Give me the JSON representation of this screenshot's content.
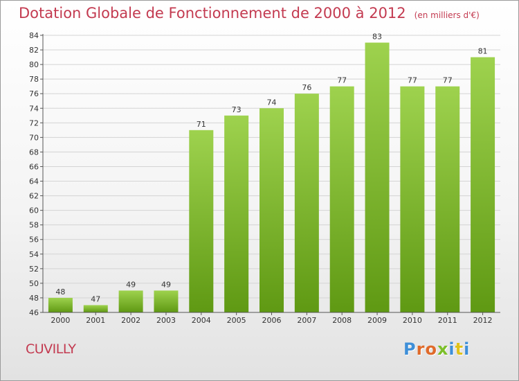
{
  "header": {
    "title": "Dotation Globale de Fonctionnement de 2000 à 2012",
    "subtitle": "(en milliers d'€)"
  },
  "footer": {
    "commune": "CUVILLY",
    "logo_text": "Proxiti"
  },
  "colors": {
    "title": "#c33a50",
    "bar_top": "#9ed24e",
    "bar_bottom": "#5f9913",
    "logo_letters": [
      "#3e8fd8",
      "#e06a2a",
      "#e06a2a",
      "#7cbf2a",
      "#3e8fd8",
      "#e0c21a",
      "#3e8fd8"
    ]
  },
  "chart_data": {
    "type": "bar",
    "title": "Dotation Globale de Fonctionnement de 2000 à 2012",
    "subtitle": "(en milliers d'€)",
    "categories": [
      "2000",
      "2001",
      "2002",
      "2003",
      "2004",
      "2005",
      "2006",
      "2007",
      "2008",
      "2009",
      "2010",
      "2011",
      "2012"
    ],
    "values": [
      48,
      47,
      49,
      49,
      71,
      73,
      74,
      76,
      77,
      83,
      77,
      77,
      81
    ],
    "ylim": [
      46,
      84
    ],
    "ytick_step": 2,
    "grid": "horizontal",
    "xlabel": "",
    "ylabel": ""
  }
}
